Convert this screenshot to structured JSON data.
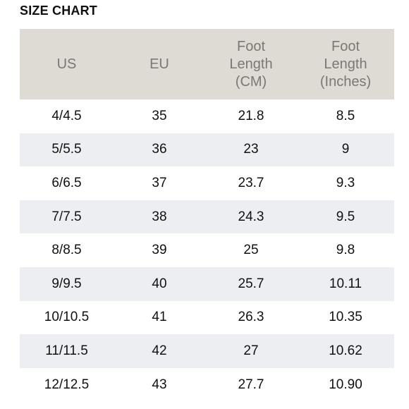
{
  "title": "SIZE CHART",
  "table": {
    "headers": [
      {
        "lines": [
          "US"
        ]
      },
      {
        "lines": [
          "EU"
        ]
      },
      {
        "lines": [
          "Foot",
          "Length",
          "(CM)"
        ]
      },
      {
        "lines": [
          "Foot",
          "Length",
          "(Inches)"
        ]
      }
    ],
    "rows": [
      {
        "us": "4/4.5",
        "eu": "35",
        "cm": "21.8",
        "inches": "8.5"
      },
      {
        "us": "5/5.5",
        "eu": "36",
        "cm": "23",
        "inches": "9"
      },
      {
        "us": "6/6.5",
        "eu": "37",
        "cm": "23.7",
        "inches": "9.3"
      },
      {
        "us": "7/7.5",
        "eu": "38",
        "cm": "24.3",
        "inches": "9.5"
      },
      {
        "us": "8/8.5",
        "eu": "39",
        "cm": "25",
        "inches": "9.8"
      },
      {
        "us": "9/9.5",
        "eu": "40",
        "cm": "25.7",
        "inches": "10.11"
      },
      {
        "us": "10/10.5",
        "eu": "41",
        "cm": "26.3",
        "inches": "10.35"
      },
      {
        "us": "11/11.5",
        "eu": "42",
        "cm": "27",
        "inches": "10.62"
      },
      {
        "us": "12/12.5",
        "eu": "43",
        "cm": "27.7",
        "inches": "10.90"
      }
    ]
  },
  "colors": {
    "header_background": "#dedbd4",
    "header_text": "#7a7872",
    "alternate_row_background": "#eceef2",
    "body_text": "#111111"
  }
}
